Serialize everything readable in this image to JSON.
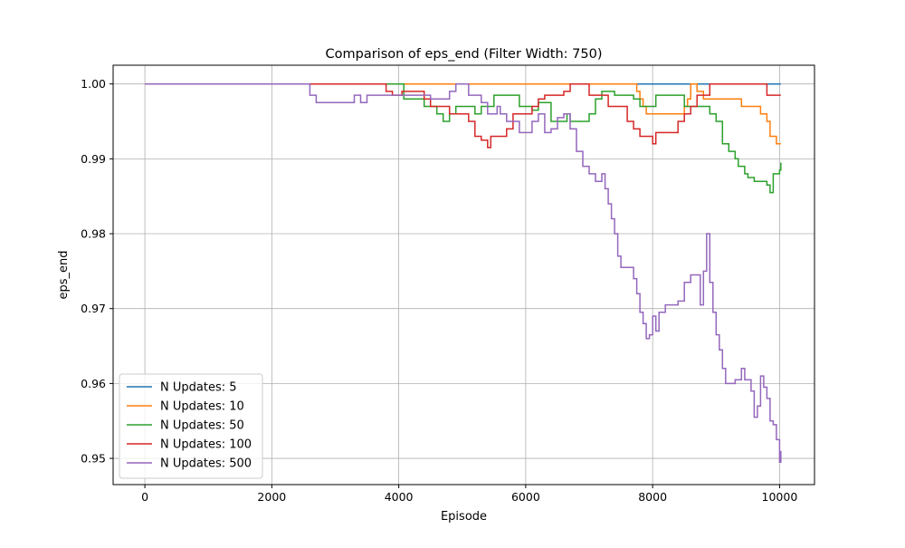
{
  "chart_data": {
    "type": "line",
    "title": "Comparison of eps_end (Filter Width: 750)",
    "xlabel": "Episode",
    "ylabel": "eps_end",
    "xlim": [
      -500,
      10550
    ],
    "ylim": [
      0.9465,
      1.0025
    ],
    "xticks": [
      0,
      2000,
      4000,
      6000,
      8000,
      10000
    ],
    "xtick_labels": [
      "0",
      "2000",
      "4000",
      "6000",
      "8000",
      "10000"
    ],
    "yticks": [
      0.95,
      0.96,
      0.97,
      0.98,
      0.99,
      1.0
    ],
    "ytick_labels": [
      "0.95",
      "0.96",
      "0.97",
      "0.98",
      "0.99",
      "1.00"
    ],
    "grid": true,
    "legend_position": "lower-left",
    "series": [
      {
        "name": "N Updates: 5",
        "color": "#1f77b4",
        "points": [
          [
            0,
            1.0
          ],
          [
            9700,
            1.0
          ],
          [
            10020,
            1.0
          ]
        ]
      },
      {
        "name": "N Updates: 10",
        "color": "#ff7f0e",
        "points": [
          [
            0,
            1.0
          ],
          [
            7700,
            1.0
          ],
          [
            7750,
            0.999
          ],
          [
            7800,
            0.998
          ],
          [
            7850,
            0.997
          ],
          [
            7900,
            0.996
          ],
          [
            8000,
            0.996
          ],
          [
            8400,
            0.996
          ],
          [
            8500,
            0.997
          ],
          [
            8550,
            0.998
          ],
          [
            8600,
            1.0
          ],
          [
            8700,
            0.999
          ],
          [
            8800,
            0.998
          ],
          [
            9000,
            0.998
          ],
          [
            9300,
            0.998
          ],
          [
            9400,
            0.997
          ],
          [
            9600,
            0.997
          ],
          [
            9700,
            0.996
          ],
          [
            9800,
            0.995
          ],
          [
            9850,
            0.993
          ],
          [
            9950,
            0.992
          ],
          [
            10020,
            0.992
          ]
        ]
      },
      {
        "name": "N Updates: 50",
        "color": "#2ca02c",
        "points": [
          [
            0,
            1.0
          ],
          [
            4050,
            1.0
          ],
          [
            4080,
            0.998
          ],
          [
            4300,
            0.998
          ],
          [
            4400,
            0.997
          ],
          [
            4500,
            0.997
          ],
          [
            4600,
            0.996
          ],
          [
            4700,
            0.995
          ],
          [
            4800,
            0.996
          ],
          [
            4900,
            0.997
          ],
          [
            5100,
            0.997
          ],
          [
            5200,
            0.996
          ],
          [
            5300,
            0.997
          ],
          [
            5500,
            0.9985
          ],
          [
            5800,
            0.9985
          ],
          [
            5900,
            0.997
          ],
          [
            6100,
            0.9965
          ],
          [
            6200,
            0.9975
          ],
          [
            6400,
            0.995
          ],
          [
            6550,
            0.995
          ],
          [
            6650,
            0.996
          ],
          [
            6700,
            0.995
          ],
          [
            6900,
            0.995
          ],
          [
            7000,
            0.996
          ],
          [
            7100,
            0.998
          ],
          [
            7200,
            0.999
          ],
          [
            7400,
            0.9985
          ],
          [
            7600,
            0.9985
          ],
          [
            7700,
            0.998
          ],
          [
            7800,
            0.997
          ],
          [
            7950,
            0.997
          ],
          [
            8050,
            0.9985
          ],
          [
            8400,
            0.9985
          ],
          [
            8500,
            0.997
          ],
          [
            8700,
            0.997
          ],
          [
            8900,
            0.996
          ],
          [
            9000,
            0.995
          ],
          [
            9100,
            0.992
          ],
          [
            9200,
            0.991
          ],
          [
            9300,
            0.99
          ],
          [
            9350,
            0.989
          ],
          [
            9450,
            0.988
          ],
          [
            9500,
            0.9875
          ],
          [
            9600,
            0.987
          ],
          [
            9700,
            0.987
          ],
          [
            9800,
            0.9865
          ],
          [
            9850,
            0.9855
          ],
          [
            9900,
            0.988
          ],
          [
            10000,
            0.9885
          ],
          [
            10020,
            0.9895
          ]
        ]
      },
      {
        "name": "N Updates: 100",
        "color": "#d62728",
        "points": [
          [
            0,
            1.0
          ],
          [
            3700,
            1.0
          ],
          [
            3800,
            0.999
          ],
          [
            3900,
            0.9985
          ],
          [
            4050,
            0.999
          ],
          [
            4300,
            0.999
          ],
          [
            4400,
            0.998
          ],
          [
            4500,
            0.997
          ],
          [
            4700,
            0.997
          ],
          [
            4800,
            0.996
          ],
          [
            5000,
            0.996
          ],
          [
            5100,
            0.995
          ],
          [
            5200,
            0.993
          ],
          [
            5300,
            0.9925
          ],
          [
            5400,
            0.9915
          ],
          [
            5450,
            0.993
          ],
          [
            5600,
            0.993
          ],
          [
            5700,
            0.994
          ],
          [
            5800,
            0.996
          ],
          [
            5950,
            0.996
          ],
          [
            6100,
            0.997
          ],
          [
            6200,
            0.998
          ],
          [
            6300,
            0.9985
          ],
          [
            6500,
            0.9985
          ],
          [
            6600,
            0.999
          ],
          [
            6700,
            1.0
          ],
          [
            6900,
            1.0
          ],
          [
            7000,
            0.9985
          ],
          [
            7200,
            0.9985
          ],
          [
            7300,
            0.997
          ],
          [
            7500,
            0.997
          ],
          [
            7600,
            0.995
          ],
          [
            7700,
            0.994
          ],
          [
            7800,
            0.993
          ],
          [
            7950,
            0.993
          ],
          [
            8000,
            0.992
          ],
          [
            8050,
            0.9935
          ],
          [
            8300,
            0.9935
          ],
          [
            8400,
            0.995
          ],
          [
            8500,
            0.996
          ],
          [
            8600,
            0.997
          ],
          [
            8700,
            0.9985
          ],
          [
            8800,
            0.9985
          ],
          [
            8900,
            1.0
          ],
          [
            9700,
            1.0
          ],
          [
            9800,
            0.9985
          ],
          [
            10020,
            0.9985
          ]
        ]
      },
      {
        "name": "N Updates: 500",
        "color": "#9467bd",
        "points": [
          [
            0,
            1.0
          ],
          [
            2500,
            1.0
          ],
          [
            2600,
            0.9985
          ],
          [
            2700,
            0.9975
          ],
          [
            3200,
            0.9975
          ],
          [
            3300,
            0.9985
          ],
          [
            3400,
            0.9975
          ],
          [
            3500,
            0.9985
          ],
          [
            4000,
            0.9985
          ],
          [
            4100,
            0.9985
          ],
          [
            4200,
            0.9985
          ],
          [
            4400,
            0.9985
          ],
          [
            4500,
            0.998
          ],
          [
            4800,
            0.999
          ],
          [
            4900,
            1.0
          ],
          [
            5050,
            1.0
          ],
          [
            5100,
            0.9985
          ],
          [
            5200,
            0.9985
          ],
          [
            5300,
            0.9975
          ],
          [
            5400,
            0.996
          ],
          [
            5500,
            0.996
          ],
          [
            5550,
            0.997
          ],
          [
            5600,
            0.996
          ],
          [
            5700,
            0.995
          ],
          [
            5800,
            0.995
          ],
          [
            5900,
            0.9935
          ],
          [
            6000,
            0.9935
          ],
          [
            6100,
            0.995
          ],
          [
            6200,
            0.996
          ],
          [
            6300,
            0.9935
          ],
          [
            6400,
            0.994
          ],
          [
            6500,
            0.9955
          ],
          [
            6600,
            0.996
          ],
          [
            6700,
            0.994
          ],
          [
            6800,
            0.991
          ],
          [
            6900,
            0.989
          ],
          [
            7000,
            0.988
          ],
          [
            7100,
            0.987
          ],
          [
            7200,
            0.988
          ],
          [
            7250,
            0.986
          ],
          [
            7300,
            0.984
          ],
          [
            7350,
            0.982
          ],
          [
            7400,
            0.98
          ],
          [
            7450,
            0.977
          ],
          [
            7500,
            0.9755
          ],
          [
            7600,
            0.9755
          ],
          [
            7700,
            0.974
          ],
          [
            7750,
            0.972
          ],
          [
            7800,
            0.9695
          ],
          [
            7850,
            0.968
          ],
          [
            7900,
            0.966
          ],
          [
            7950,
            0.9665
          ],
          [
            8000,
            0.969
          ],
          [
            8050,
            0.967
          ],
          [
            8100,
            0.9695
          ],
          [
            8200,
            0.9705
          ],
          [
            8300,
            0.9705
          ],
          [
            8400,
            0.971
          ],
          [
            8500,
            0.9735
          ],
          [
            8600,
            0.9745
          ],
          [
            8700,
            0.9745
          ],
          [
            8750,
            0.9705
          ],
          [
            8800,
            0.975
          ],
          [
            8850,
            0.98
          ],
          [
            8900,
            0.9735
          ],
          [
            8950,
            0.9695
          ],
          [
            9000,
            0.9665
          ],
          [
            9050,
            0.9645
          ],
          [
            9100,
            0.962
          ],
          [
            9150,
            0.96
          ],
          [
            9200,
            0.96
          ],
          [
            9300,
            0.9605
          ],
          [
            9400,
            0.962
          ],
          [
            9450,
            0.9605
          ],
          [
            9500,
            0.9605
          ],
          [
            9550,
            0.959
          ],
          [
            9600,
            0.9555
          ],
          [
            9650,
            0.957
          ],
          [
            9700,
            0.961
          ],
          [
            9750,
            0.9595
          ],
          [
            9800,
            0.958
          ],
          [
            9850,
            0.955
          ],
          [
            9900,
            0.9545
          ],
          [
            9950,
            0.9525
          ],
          [
            10000,
            0.9495
          ],
          [
            10020,
            0.951
          ]
        ]
      }
    ]
  }
}
